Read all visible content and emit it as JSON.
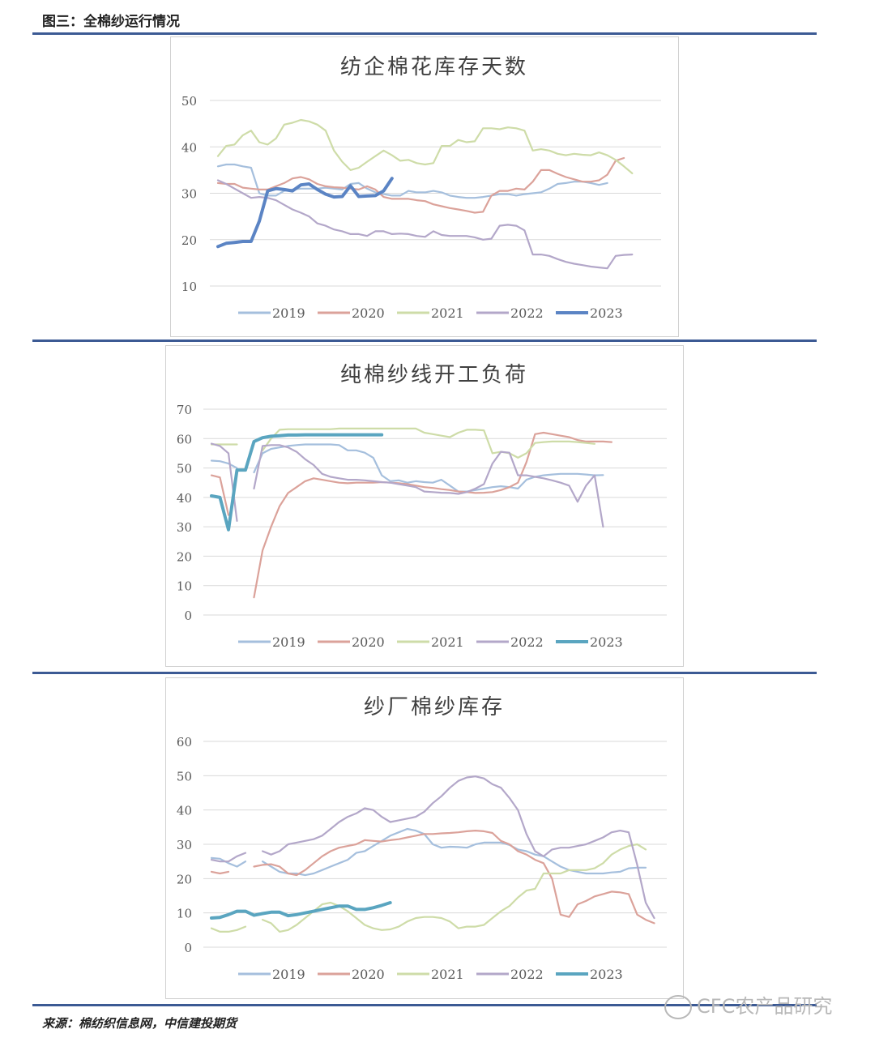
{
  "header": {
    "figure_title": "图三：全棉纱运行情况"
  },
  "footer": {
    "source": "来源：棉纺织信息网，中信建投期货",
    "watermark": "CFC农产品研究"
  },
  "colors": {
    "2019": "#a5bfdd",
    "2020": "#dba29a",
    "2021": "#cedca8",
    "2022": "#b3a7c9",
    "2023_top": "#5b84c4",
    "2023_other": "#5aa5c0",
    "grid": "#d9d9d9",
    "axis_text": "#595959"
  },
  "chart_data": [
    {
      "type": "line",
      "title": "纺企棉花库存天数",
      "ylim": [
        10,
        50
      ],
      "yticks": [
        10,
        20,
        30,
        40,
        50
      ],
      "grid": true,
      "legend_position": "bottom",
      "series": [
        {
          "name": "2019",
          "values": [
            35.8,
            36.2,
            36.2,
            35.8,
            35.5,
            30.0,
            29.5,
            29.5,
            30.5,
            30.8,
            31.0,
            31.0,
            31.0,
            31.2,
            31.0,
            30.8,
            32.0,
            32.2,
            31.0,
            30.2,
            29.8,
            29.5,
            29.5,
            30.5,
            30.2,
            30.2,
            30.5,
            30.2,
            29.5,
            29.2,
            29.0,
            29.0,
            29.2,
            29.5,
            29.8,
            29.8,
            29.5,
            29.8,
            30.0,
            30.2,
            31.0,
            32.0,
            32.2,
            32.5,
            32.5,
            32.2,
            31.8,
            32.2
          ]
        },
        {
          "name": "2020",
          "values": [
            32.2,
            32.0,
            32.0,
            31.2,
            31.0,
            30.8,
            30.8,
            31.5,
            32.2,
            33.2,
            33.5,
            33.0,
            32.0,
            31.5,
            31.3,
            31.2,
            31.0,
            30.8,
            31.5,
            30.8,
            29.2,
            28.8,
            28.8,
            28.8,
            28.5,
            28.3,
            27.6,
            27.2,
            26.8,
            26.5,
            26.2,
            25.8,
            26.0,
            29.5,
            30.5,
            30.5,
            31.0,
            30.8,
            32.5,
            35.0,
            35.0,
            34.2,
            33.5,
            33.0,
            32.5,
            32.5,
            32.8,
            34.0,
            37.0,
            37.6
          ]
        },
        {
          "name": "2021",
          "values": [
            38.0,
            40.2,
            40.5,
            42.5,
            43.5,
            41.0,
            40.5,
            41.8,
            44.8,
            45.2,
            45.8,
            45.5,
            44.8,
            43.5,
            39.2,
            36.8,
            35.0,
            35.5,
            36.8,
            38.0,
            39.2,
            38.2,
            37.0,
            37.2,
            36.5,
            36.2,
            36.5,
            40.2,
            40.2,
            41.5,
            41.0,
            41.2,
            44.0,
            44.0,
            43.8,
            44.2,
            44.0,
            43.5,
            39.2,
            39.5,
            39.2,
            38.5,
            38.2,
            38.5,
            38.3,
            38.2,
            38.8,
            38.2,
            37.2,
            35.8,
            34.3
          ]
        },
        {
          "name": "2022",
          "values": [
            32.8,
            32.0,
            31.0,
            30.0,
            29.0,
            29.2,
            29.0,
            28.5,
            27.5,
            26.5,
            25.8,
            25.0,
            23.5,
            23.0,
            22.2,
            21.8,
            21.2,
            21.2,
            20.8,
            21.8,
            21.8,
            21.2,
            21.3,
            21.2,
            20.8,
            20.6,
            21.8,
            21.0,
            20.8,
            20.8,
            20.8,
            20.5,
            20.0,
            20.2,
            23.0,
            23.2,
            23.0,
            22.0,
            16.8,
            16.8,
            16.5,
            15.8,
            15.2,
            14.8,
            14.5,
            14.2,
            14.0,
            13.8,
            16.5,
            16.7,
            16.8
          ]
        },
        {
          "name": "2023",
          "values": [
            18.5,
            19.2,
            19.4,
            19.6,
            19.6,
            24.0,
            30.5,
            31.0,
            30.8,
            30.5,
            31.8,
            32.0,
            30.8,
            29.8,
            29.2,
            29.3,
            31.6,
            29.3,
            29.4,
            29.5,
            30.5,
            33.2
          ]
        }
      ]
    },
    {
      "type": "line",
      "title": "纯棉纱线开工负荷",
      "ylim": [
        0,
        70
      ],
      "yticks": [
        0,
        10,
        20,
        30,
        40,
        50,
        60,
        70
      ],
      "grid": true,
      "legend_position": "bottom",
      "series": [
        {
          "name": "2019",
          "values": [
            52.5,
            52.3,
            51.5,
            50.0,
            null,
            48.5,
            55.0,
            56.5,
            57.0,
            57.5,
            57.8,
            58.0,
            58.0,
            58.0,
            58.0,
            57.8,
            56.0,
            56.0,
            55.2,
            53.5,
            47.5,
            45.5,
            45.8,
            45.0,
            45.5,
            45.2,
            45.0,
            46.0,
            44.0,
            42.0,
            42.0,
            42.5,
            43.0,
            43.5,
            43.8,
            43.5,
            43.0,
            46.0,
            47.0,
            47.5,
            47.8,
            48.0,
            48.0,
            48.0,
            47.8,
            47.5,
            47.6
          ]
        },
        {
          "name": "2020",
          "values": [
            47.5,
            46.8,
            34.0,
            null,
            null,
            6.0,
            22.0,
            30.0,
            37.0,
            41.5,
            43.5,
            45.5,
            46.5,
            46.0,
            45.5,
            45.0,
            44.8,
            45.0,
            45.0,
            45.0,
            45.2,
            45.0,
            44.8,
            44.5,
            44.0,
            43.5,
            43.2,
            42.8,
            42.5,
            42.0,
            41.8,
            41.5,
            41.6,
            41.8,
            42.5,
            43.5,
            45.0,
            52.0,
            61.5,
            62.0,
            61.5,
            61.0,
            60.5,
            59.5,
            59.0,
            59.0,
            59.0,
            58.8
          ]
        },
        {
          "name": "2021",
          "values": [
            58.0,
            58.0,
            58.0,
            58.0,
            null,
            null,
            56.0,
            60.0,
            63.0,
            63.2,
            63.2,
            63.2,
            63.2,
            63.2,
            63.2,
            63.4,
            63.4,
            63.4,
            63.4,
            63.4,
            63.4,
            63.4,
            63.4,
            63.4,
            63.4,
            62.0,
            61.5,
            61.0,
            60.5,
            62.0,
            63.0,
            63.0,
            62.8,
            55.0,
            55.5,
            55.0,
            53.5,
            55.0,
            58.5,
            58.8,
            59.0,
            59.0,
            59.0,
            58.8,
            58.5,
            58.2
          ]
        },
        {
          "name": "2022",
          "values": [
            58.3,
            57.5,
            55.0,
            32.0,
            null,
            43.0,
            57.5,
            57.8,
            57.8,
            57.0,
            55.5,
            53.0,
            51.0,
            48.0,
            47.0,
            46.5,
            46.0,
            46.0,
            45.8,
            45.5,
            45.2,
            45.0,
            44.5,
            44.0,
            43.5,
            42.0,
            41.8,
            41.6,
            41.5,
            41.2,
            41.8,
            43.0,
            44.5,
            51.5,
            55.5,
            55.2,
            47.5,
            47.5,
            47.0,
            46.5,
            45.8,
            45.0,
            44.0,
            38.5,
            44.0,
            47.5,
            30.0
          ]
        },
        {
          "name": "2023",
          "values": [
            40.5,
            40.0,
            29.0,
            49.3,
            49.3,
            59.0,
            60.3,
            60.8,
            61.0,
            61.2,
            61.2,
            61.3,
            61.3,
            61.3,
            61.3,
            61.3,
            61.3,
            61.3,
            61.3,
            61.3,
            61.3
          ]
        }
      ]
    },
    {
      "type": "line",
      "title": "纱厂棉纱库存",
      "ylim": [
        0,
        60
      ],
      "yticks": [
        0,
        10,
        20,
        30,
        40,
        50,
        60
      ],
      "grid": true,
      "legend_position": "bottom",
      "series": [
        {
          "name": "2019",
          "values": [
            26.0,
            25.8,
            24.5,
            23.5,
            25.0,
            null,
            25.0,
            23.5,
            22.0,
            21.5,
            21.5,
            21.0,
            21.5,
            22.5,
            23.5,
            24.5,
            25.5,
            27.5,
            28.0,
            29.5,
            31.0,
            32.5,
            33.5,
            34.5,
            34.0,
            33.0,
            30.0,
            29.0,
            29.3,
            29.2,
            29.0,
            30.0,
            30.5,
            30.5,
            30.5,
            29.8,
            28.5,
            28.0,
            27.0,
            26.5,
            25.0,
            23.5,
            22.5,
            22.0,
            21.5,
            21.5,
            21.5,
            21.8,
            22.0,
            23.0,
            23.2,
            23.2
          ]
        },
        {
          "name": "2020",
          "values": [
            22.0,
            21.5,
            22.0,
            null,
            null,
            23.5,
            24.0,
            24.2,
            23.5,
            21.5,
            21.0,
            22.5,
            24.5,
            26.5,
            28.0,
            29.0,
            29.5,
            30.0,
            31.2,
            31.0,
            30.8,
            31.2,
            31.5,
            32.0,
            32.5,
            33.0,
            33.0,
            33.2,
            33.3,
            33.5,
            33.8,
            34.0,
            33.8,
            33.3,
            31.0,
            30.0,
            28.0,
            27.0,
            25.5,
            24.5,
            20.0,
            9.5,
            8.8,
            12.5,
            13.5,
            14.8,
            15.5,
            16.2,
            16.0,
            15.5,
            9.5,
            8.0,
            7.0
          ]
        },
        {
          "name": "2021",
          "values": [
            5.5,
            4.5,
            4.5,
            5.0,
            6.0,
            null,
            8.0,
            7.0,
            4.5,
            5.0,
            6.5,
            8.5,
            10.5,
            12.5,
            13.0,
            12.0,
            10.5,
            8.5,
            6.5,
            5.5,
            5.0,
            5.2,
            6.0,
            7.5,
            8.5,
            8.8,
            8.8,
            8.5,
            7.5,
            5.5,
            6.0,
            6.0,
            6.5,
            8.5,
            10.5,
            12.0,
            14.5,
            16.5,
            17.0,
            21.5,
            21.5,
            21.5,
            22.5,
            22.5,
            22.5,
            23.0,
            24.5,
            27.0,
            28.5,
            29.5,
            30.0,
            28.5
          ]
        },
        {
          "name": "2022",
          "values": [
            25.5,
            25.0,
            25.0,
            26.5,
            27.5,
            null,
            28.0,
            27.0,
            28.0,
            30.0,
            30.5,
            31.0,
            31.5,
            32.5,
            34.5,
            36.5,
            38.0,
            39.0,
            40.5,
            40.0,
            38.0,
            36.5,
            37.0,
            37.5,
            38.0,
            39.5,
            42.0,
            44.0,
            46.5,
            48.5,
            49.5,
            49.8,
            49.2,
            47.5,
            46.5,
            43.5,
            40.0,
            33.0,
            28.0,
            26.5,
            28.5,
            29.0,
            29.0,
            29.5,
            30.0,
            31.0,
            32.0,
            33.5,
            34.0,
            33.5,
            24.0,
            13.0,
            8.5
          ]
        },
        {
          "name": "2023",
          "values": [
            8.5,
            8.7,
            9.5,
            10.5,
            10.5,
            9.3,
            9.8,
            10.2,
            10.2,
            9.2,
            9.5,
            10.0,
            10.5,
            11.0,
            11.5,
            12.0,
            12.0,
            11.0,
            11.0,
            11.5,
            12.2,
            13.0
          ]
        }
      ]
    }
  ]
}
